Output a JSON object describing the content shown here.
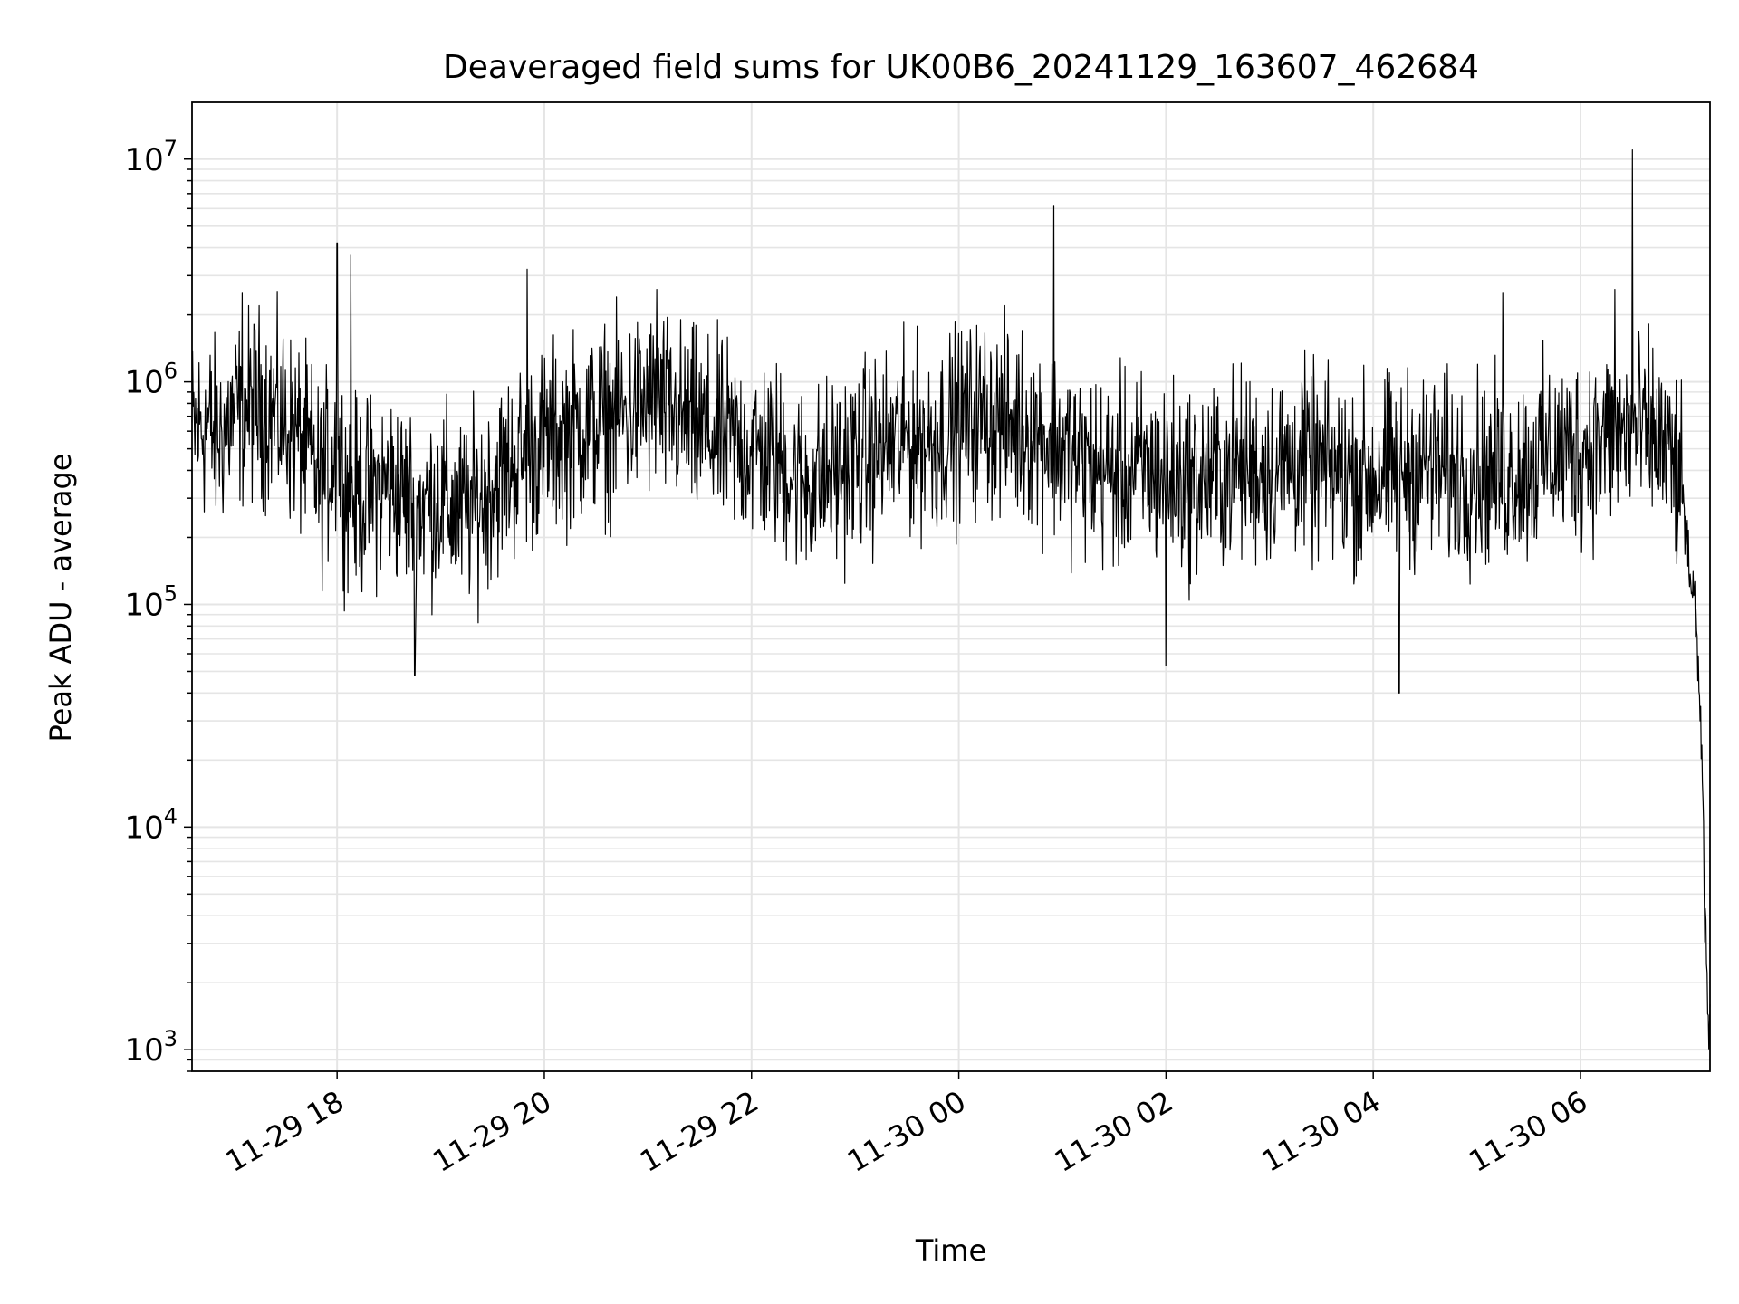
{
  "chart_data": {
    "type": "line",
    "title": "Deaveraged field sums for UK00B6_20241129_163607_462684",
    "xlabel": "Time",
    "ylabel": "Peak ADU - average",
    "y_scale": "log",
    "ylim": [
      800,
      18000000
    ],
    "xlim": [
      "2024-11-29 16:36",
      "2024-11-30 07:15"
    ],
    "x_ticks": [
      "11-29 18",
      "11-29 20",
      "11-29 22",
      "11-30 00",
      "11-30 02",
      "11-30 04",
      "11-30 06"
    ],
    "x_tick_times": [
      "2024-11-29 18:00",
      "2024-11-29 20:00",
      "2024-11-29 22:00",
      "2024-11-30 00:00",
      "2024-11-30 02:00",
      "2024-11-30 04:00",
      "2024-11-30 06:00"
    ],
    "y_ticks": [
      {
        "value": 1000,
        "base": "10",
        "exp": "3"
      },
      {
        "value": 10000,
        "base": "10",
        "exp": "4"
      },
      {
        "value": 100000,
        "base": "10",
        "exp": "5"
      },
      {
        "value": 1000000,
        "base": "10",
        "exp": "6"
      },
      {
        "value": 10000000,
        "base": "10",
        "exp": "7"
      }
    ],
    "grid": true,
    "line_color": "#000000",
    "grid_color": "#e5e5e5",
    "series": [
      {
        "name": "",
        "x": [
          "2024-11-29 16:36",
          "2024-11-29 16:45",
          "2024-11-29 16:50",
          "2024-11-29 16:55",
          "2024-11-29 17:00",
          "2024-11-29 17:05",
          "2024-11-29 17:15",
          "2024-11-29 17:25",
          "2024-11-29 17:35",
          "2024-11-29 17:45",
          "2024-11-29 17:50",
          "2024-11-29 18:00",
          "2024-11-29 18:05",
          "2024-11-29 18:10",
          "2024-11-29 18:20",
          "2024-11-29 18:30",
          "2024-11-29 18:40",
          "2024-11-29 18:50",
          "2024-11-29 19:00",
          "2024-11-29 19:10",
          "2024-11-29 19:20",
          "2024-11-29 19:30",
          "2024-11-29 19:45",
          "2024-11-29 19:55",
          "2024-11-29 20:05",
          "2024-11-29 20:15",
          "2024-11-29 20:30",
          "2024-11-29 20:45",
          "2024-11-29 21:00",
          "2024-11-29 21:15",
          "2024-11-29 21:30",
          "2024-11-29 21:45",
          "2024-11-29 22:00",
          "2024-11-29 22:15",
          "2024-11-29 22:30",
          "2024-11-29 22:45",
          "2024-11-29 23:00",
          "2024-11-29 23:15",
          "2024-11-29 23:30",
          "2024-11-29 23:45",
          "2024-11-30 00:00",
          "2024-11-30 00:15",
          "2024-11-30 00:30",
          "2024-11-30 00:45",
          "2024-11-30 01:00",
          "2024-11-30 01:15",
          "2024-11-30 01:30",
          "2024-11-30 01:45",
          "2024-11-30 02:00",
          "2024-11-30 02:15",
          "2024-11-30 02:30",
          "2024-11-30 02:45",
          "2024-11-30 03:00",
          "2024-11-30 03:15",
          "2024-11-30 03:30",
          "2024-11-30 03:45",
          "2024-11-30 04:00",
          "2024-11-30 04:15",
          "2024-11-30 04:30",
          "2024-11-30 04:45",
          "2024-11-30 05:00",
          "2024-11-30 05:15",
          "2024-11-30 05:30",
          "2024-11-30 05:45",
          "2024-11-30 06:00",
          "2024-11-30 06:15",
          "2024-11-30 06:30",
          "2024-11-30 06:45",
          "2024-11-30 06:55",
          "2024-11-30 07:00",
          "2024-11-30 07:05",
          "2024-11-30 07:08",
          "2024-11-30 07:10",
          "2024-11-30 07:12",
          "2024-11-30 07:14"
        ],
        "values": [
          600000,
          650000,
          550000,
          620000,
          700000,
          750000,
          800000,
          700000,
          600000,
          450000,
          350000,
          500000,
          350000,
          300000,
          320000,
          350000,
          300000,
          280000,
          300000,
          250000,
          280000,
          350000,
          450000,
          500000,
          550000,
          600000,
          650000,
          700000,
          800000,
          700000,
          600000,
          550000,
          500000,
          450000,
          350000,
          380000,
          450000,
          500000,
          550000,
          550000,
          650000,
          700000,
          650000,
          600000,
          500000,
          420000,
          380000,
          400000,
          380000,
          350000,
          380000,
          420000,
          400000,
          450000,
          400000,
          380000,
          380000,
          400000,
          420000,
          380000,
          400000,
          380000,
          420000,
          480000,
          500000,
          550000,
          600000,
          550000,
          400000,
          250000,
          120000,
          60000,
          25000,
          4000,
          1200
        ]
      }
    ],
    "spikes": [
      {
        "x": "2024-11-29 17:05",
        "y": 2500000
      },
      {
        "x": "2024-11-29 18:00",
        "y": 4200000
      },
      {
        "x": "2024-11-29 18:08",
        "y": 3700000
      },
      {
        "x": "2024-11-29 18:45",
        "y": 48000
      },
      {
        "x": "2024-11-29 19:50",
        "y": 3200000
      },
      {
        "x": "2024-11-29 21:05",
        "y": 2600000
      },
      {
        "x": "2024-11-30 00:55",
        "y": 6200000
      },
      {
        "x": "2024-11-30 02:00",
        "y": 53000
      },
      {
        "x": "2024-11-30 04:15",
        "y": 40000
      },
      {
        "x": "2024-11-30 05:15",
        "y": 2500000
      },
      {
        "x": "2024-11-30 06:20",
        "y": 2600000
      },
      {
        "x": "2024-11-30 06:30",
        "y": 11000000
      }
    ]
  }
}
